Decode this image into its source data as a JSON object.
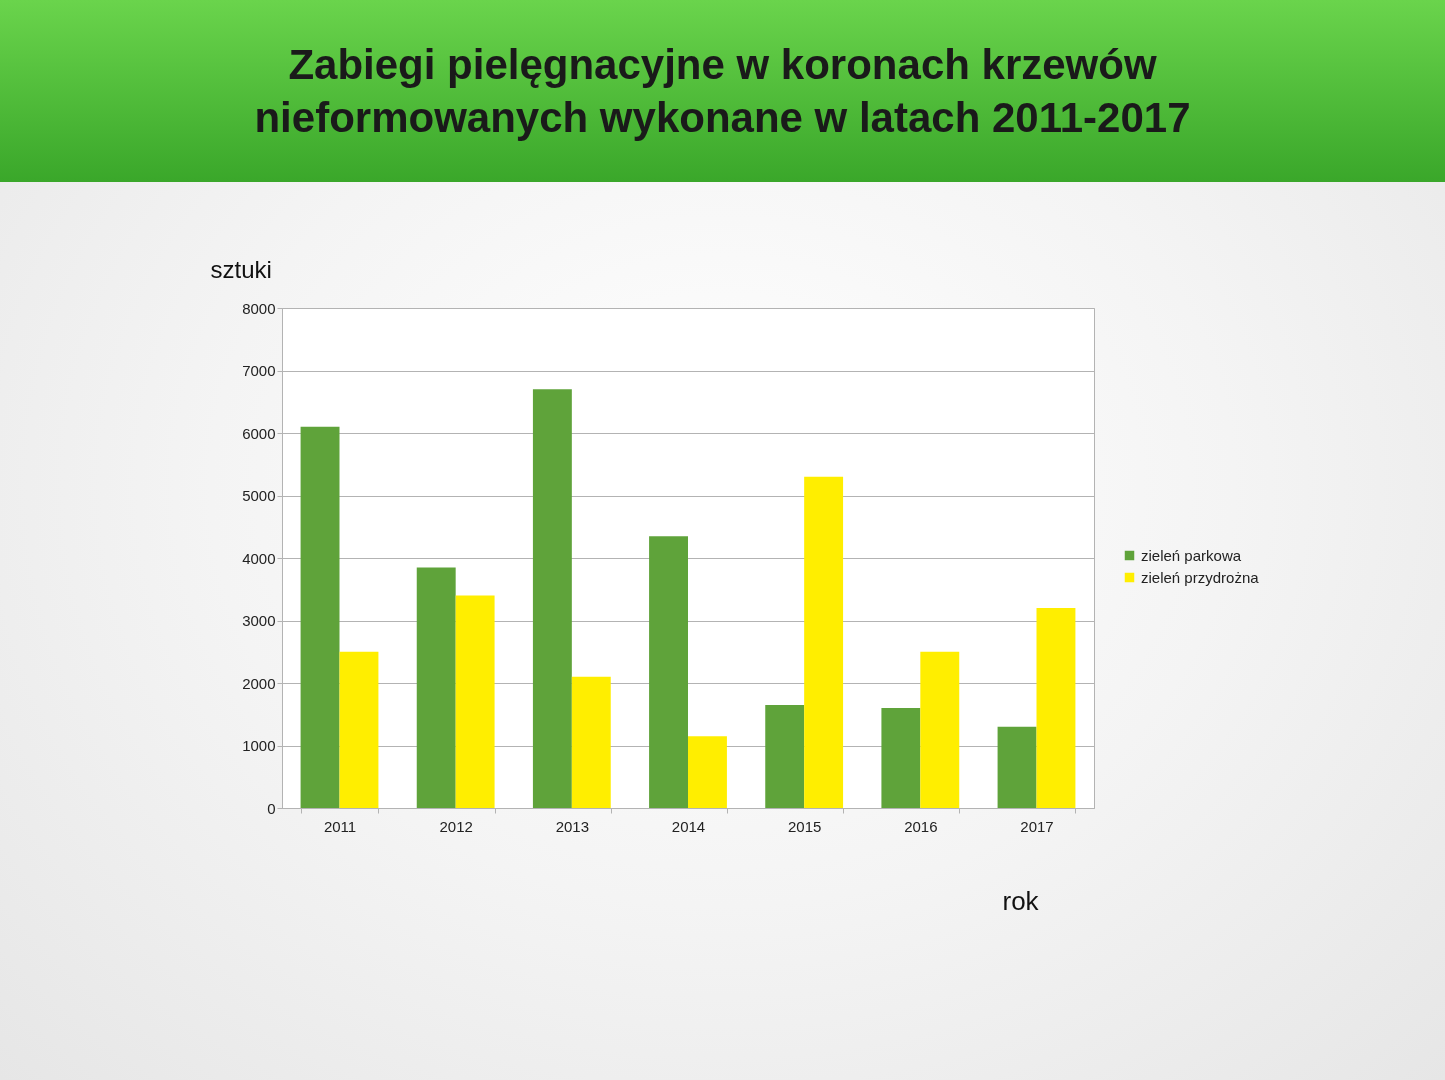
{
  "chart_data": {
    "type": "bar",
    "title": "Zabiegi pielęgnacyjne w koronach krzewów nieformowanych wykonane w latach 2011-2017",
    "xlabel": "rok",
    "ylabel": "sztuki",
    "categories": [
      "2011",
      "2012",
      "2013",
      "2014",
      "2015",
      "2016",
      "2017"
    ],
    "series": [
      {
        "name": "zieleń parkowa",
        "color": "#5fa33a",
        "values": [
          6100,
          3850,
          6700,
          4350,
          1650,
          1600,
          1300
        ]
      },
      {
        "name": "zieleń przydrożna",
        "color": "#ffee00",
        "values": [
          2500,
          3400,
          2100,
          1150,
          5300,
          2500,
          3200
        ]
      }
    ],
    "ylim": [
      0,
      8000
    ],
    "yticks": [
      0,
      1000,
      2000,
      3000,
      4000,
      5000,
      6000,
      7000,
      8000
    ],
    "grid": "y",
    "legend": "right"
  }
}
